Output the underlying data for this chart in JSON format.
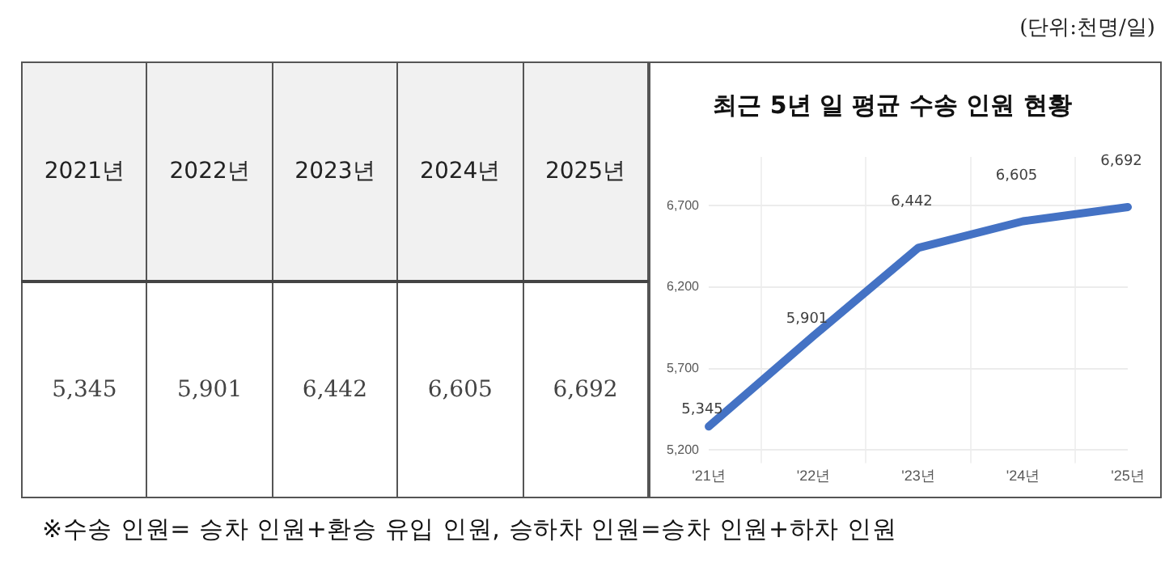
{
  "chart_data": {
    "type": "line",
    "title": "최근 5년 일 평균 수송 인원 현황",
    "categories": [
      "'21년",
      "'22년",
      "'23년",
      "'24년",
      "'25년"
    ],
    "series": [
      {
        "color": "#4472c4",
        "values": [
          5345,
          5901,
          6442,
          6605,
          6692
        ],
        "value_labels": [
          "5,345",
          "5,901",
          "6,442",
          "6,605",
          "6,692"
        ]
      }
    ],
    "ylim": [
      5200,
      7000
    ],
    "yticks": [
      {
        "value": 5200,
        "label": "5,200"
      },
      {
        "value": 5700,
        "label": "5,700"
      },
      {
        "value": 6200,
        "label": "6,200"
      },
      {
        "value": 6700,
        "label": "6,700"
      }
    ],
    "grid": true,
    "marker": "none",
    "annotations": [
      "(단위:천명/일)",
      "2021년",
      "2022년",
      "2023년",
      "2024년",
      "2025년",
      "※수송 인원= 승차 인원+환승 유입 인원, 승하차 인원=승차 인원+하차 인원"
    ]
  }
}
